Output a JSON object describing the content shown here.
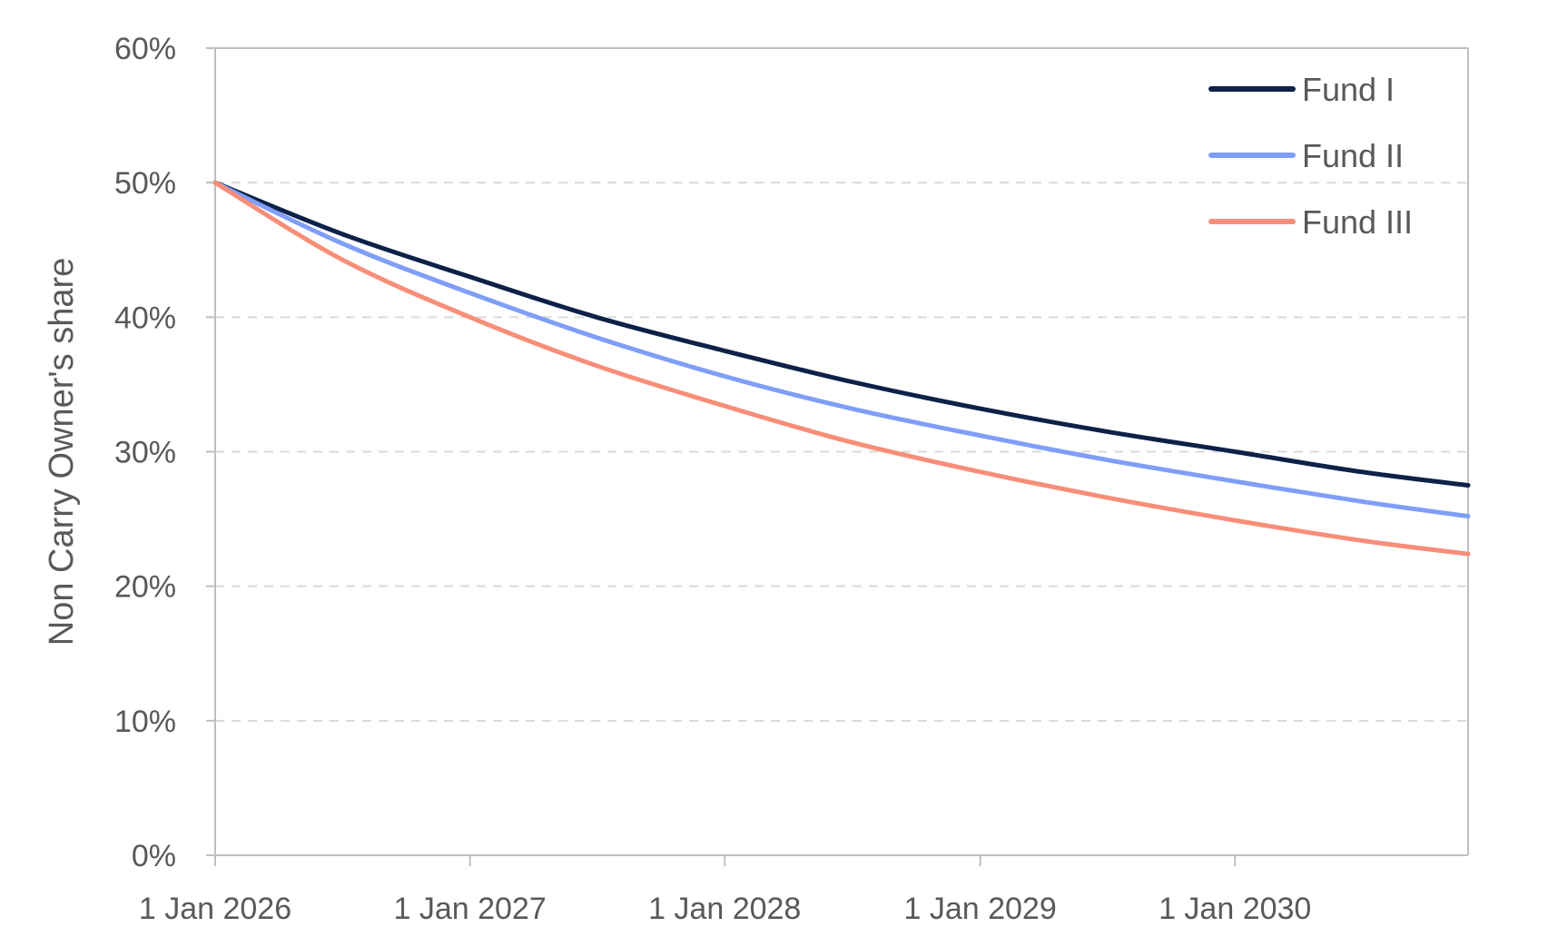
{
  "chart_data": {
    "type": "line",
    "ylabel": "Non Carry Owner's share",
    "xlabel": "",
    "x_ticks": [
      "1 Jan 2026",
      "1 Jan 2027",
      "1 Jan 2028",
      "1 Jan 2029",
      "1 Jan 2030"
    ],
    "y_ticks": [
      "0%",
      "10%",
      "20%",
      "30%",
      "40%",
      "50%",
      "60%"
    ],
    "xlim": [
      "2026-01-01",
      "2030-12-01"
    ],
    "ylim": [
      0,
      0.6
    ],
    "grid": "horizontal dashed",
    "legend_position": "top-right",
    "x": [
      "2026-01-01",
      "2026-07-01",
      "2027-01-01",
      "2027-07-01",
      "2028-01-01",
      "2028-07-01",
      "2029-01-01",
      "2029-07-01",
      "2030-01-01",
      "2030-07-01",
      "2030-12-01"
    ],
    "series": [
      {
        "name": "Fund I",
        "color": "#0d2149",
        "values": [
          0.5,
          0.462,
          0.43,
          0.4,
          0.375,
          0.352,
          0.332,
          0.315,
          0.3,
          0.285,
          0.275
        ]
      },
      {
        "name": "Fund II",
        "color": "#7f9ef8",
        "values": [
          0.5,
          0.455,
          0.418,
          0.385,
          0.356,
          0.332,
          0.312,
          0.294,
          0.278,
          0.263,
          0.252
        ]
      },
      {
        "name": "Fund III",
        "color": "#f88e78",
        "values": [
          0.5,
          0.443,
          0.4,
          0.364,
          0.334,
          0.307,
          0.285,
          0.266,
          0.249,
          0.234,
          0.224
        ]
      }
    ]
  }
}
